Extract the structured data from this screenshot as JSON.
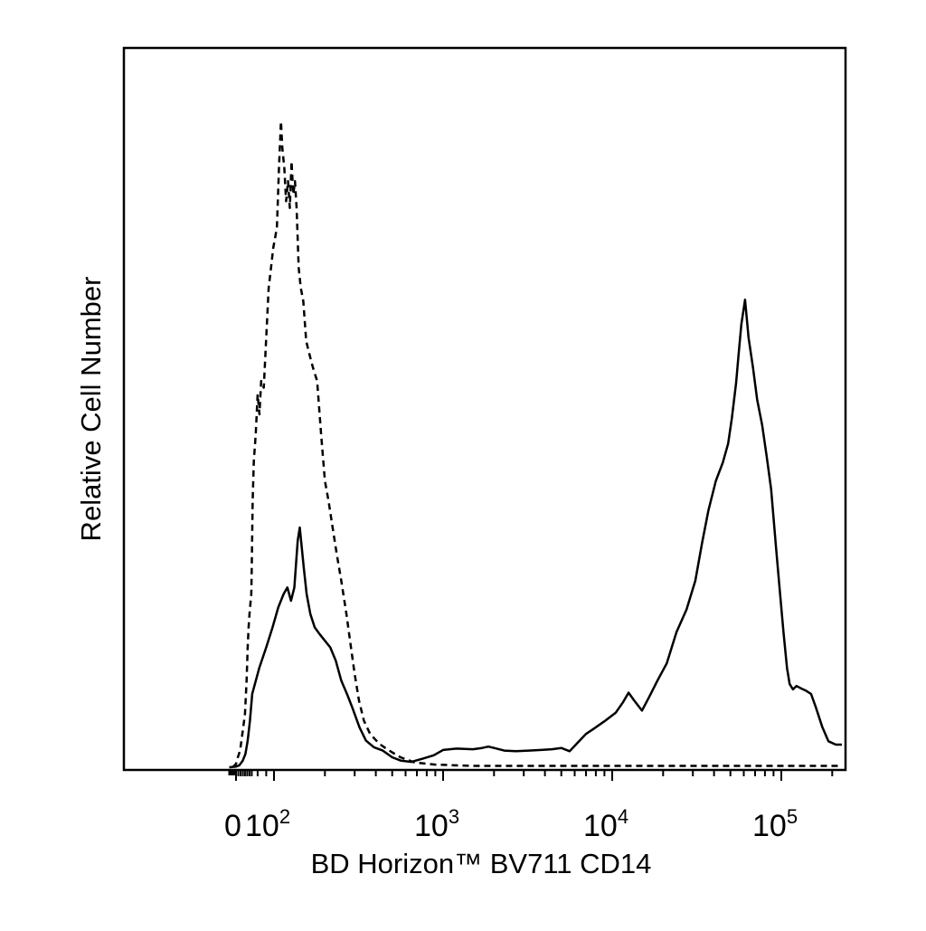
{
  "chart_data": {
    "type": "line",
    "xlabel": "BD Horizon™ BV711 CD14",
    "ylabel": "Relative Cell Number",
    "xscale": "biexponential (log-like)",
    "xlim": [
      -30,
      230000
    ],
    "ylim": [
      0,
      100
    ],
    "grid": false,
    "legend": "none",
    "x_tick_labels": [
      {
        "value": 0,
        "base": "0",
        "exp": ""
      },
      {
        "value": 100,
        "base": "10",
        "exp": "2"
      },
      {
        "value": 1000,
        "base": "10",
        "exp": "3"
      },
      {
        "value": 10000,
        "base": "10",
        "exp": "4"
      },
      {
        "value": 100000,
        "base": "10",
        "exp": "5"
      }
    ],
    "series": [
      {
        "style": "dashed",
        "color": "#000000",
        "points": [
          [
            -15,
            0
          ],
          [
            0,
            0.5
          ],
          [
            8,
            1.5
          ],
          [
            18,
            2.5
          ],
          [
            24,
            4
          ],
          [
            32,
            6
          ],
          [
            40,
            8
          ],
          [
            47,
            13
          ],
          [
            52,
            18
          ],
          [
            56,
            21
          ],
          [
            60,
            23
          ],
          [
            65,
            25
          ],
          [
            68,
            26
          ],
          [
            70,
            30
          ],
          [
            72,
            35
          ],
          [
            74,
            40
          ],
          [
            76,
            46
          ],
          [
            78,
            50
          ],
          [
            80,
            56
          ],
          [
            82,
            53
          ],
          [
            84,
            58
          ],
          [
            87,
            57
          ],
          [
            89,
            62
          ],
          [
            91,
            67
          ],
          [
            93,
            72
          ],
          [
            96,
            75
          ],
          [
            99,
            78
          ],
          [
            104,
            81
          ],
          [
            107,
            90
          ],
          [
            110,
            97
          ],
          [
            112,
            93
          ],
          [
            115,
            90
          ],
          [
            118,
            85
          ],
          [
            121,
            88
          ],
          [
            124,
            84
          ],
          [
            127,
            91
          ],
          [
            130,
            86
          ],
          [
            133,
            88
          ],
          [
            136,
            84
          ],
          [
            140,
            75
          ],
          [
            144,
            72
          ],
          [
            149,
            70
          ],
          [
            155,
            64
          ],
          [
            162,
            62
          ],
          [
            170,
            60
          ],
          [
            180,
            58
          ],
          [
            190,
            50
          ],
          [
            200,
            43
          ],
          [
            210,
            40
          ],
          [
            222,
            36
          ],
          [
            235,
            32
          ],
          [
            250,
            28
          ],
          [
            268,
            23
          ],
          [
            285,
            18
          ],
          [
            300,
            14
          ],
          [
            318,
            10
          ],
          [
            340,
            7
          ],
          [
            370,
            5
          ],
          [
            420,
            3.5
          ],
          [
            480,
            2.5
          ],
          [
            560,
            1.5
          ],
          [
            680,
            0.7
          ],
          [
            900,
            0.4
          ],
          [
            1500,
            0.2
          ],
          [
            230000,
            0.2
          ]
        ]
      },
      {
        "style": "solid",
        "color": "#000000",
        "points": [
          [
            -30,
            0
          ],
          [
            0,
            0.1
          ],
          [
            15,
            0.3
          ],
          [
            30,
            1
          ],
          [
            42,
            2
          ],
          [
            52,
            4
          ],
          [
            62,
            7
          ],
          [
            72,
            11
          ],
          [
            82,
            15
          ],
          [
            90,
            18
          ],
          [
            98,
            21
          ],
          [
            106,
            24
          ],
          [
            114,
            26
          ],
          [
            120,
            27
          ],
          [
            126,
            25
          ],
          [
            132,
            27
          ],
          [
            138,
            34
          ],
          [
            142,
            36
          ],
          [
            146,
            33
          ],
          [
            150,
            30
          ],
          [
            156,
            26
          ],
          [
            164,
            23
          ],
          [
            174,
            21
          ],
          [
            186,
            20
          ],
          [
            200,
            19
          ],
          [
            215,
            18
          ],
          [
            232,
            16
          ],
          [
            250,
            13
          ],
          [
            270,
            11
          ],
          [
            290,
            9
          ],
          [
            320,
            6
          ],
          [
            350,
            4
          ],
          [
            390,
            3
          ],
          [
            440,
            2.5
          ],
          [
            500,
            1.5
          ],
          [
            560,
            1
          ],
          [
            650,
            0.8
          ],
          [
            760,
            1.3
          ],
          [
            880,
            1.8
          ],
          [
            1000,
            2.6
          ],
          [
            1200,
            2.8
          ],
          [
            1500,
            2.7
          ],
          [
            1700,
            2.9
          ],
          [
            1850,
            3.1
          ],
          [
            2000,
            2.9
          ],
          [
            2300,
            2.5
          ],
          [
            2700,
            2.4
          ],
          [
            3200,
            2.5
          ],
          [
            3800,
            2.6
          ],
          [
            4400,
            2.7
          ],
          [
            5000,
            2.9
          ],
          [
            5600,
            2.4
          ],
          [
            6200,
            3.6
          ],
          [
            7000,
            5
          ],
          [
            7800,
            5.8
          ],
          [
            9000,
            6.9
          ],
          [
            10500,
            8.2
          ],
          [
            11600,
            9.8
          ],
          [
            12500,
            11.2
          ],
          [
            13500,
            10
          ],
          [
            15000,
            8.5
          ],
          [
            16500,
            10.5
          ],
          [
            18500,
            13
          ],
          [
            21000,
            15.6
          ],
          [
            24000,
            20.3
          ],
          [
            27500,
            23.7
          ],
          [
            31000,
            28
          ],
          [
            34000,
            33.7
          ],
          [
            37000,
            38.5
          ],
          [
            41000,
            43
          ],
          [
            45000,
            45.7
          ],
          [
            48500,
            48.6
          ],
          [
            51000,
            52.4
          ],
          [
            54000,
            57.7
          ],
          [
            56000,
            62.2
          ],
          [
            58000,
            66.5
          ],
          [
            61000,
            70.2
          ],
          [
            64000,
            64.5
          ],
          [
            68000,
            60
          ],
          [
            72000,
            55.2
          ],
          [
            77000,
            51.4
          ],
          [
            82000,
            46.6
          ],
          [
            87000,
            41.8
          ],
          [
            93000,
            33.1
          ],
          [
            98000,
            26.4
          ],
          [
            103000,
            20.3
          ],
          [
            108000,
            14.9
          ],
          [
            112000,
            12.5
          ],
          [
            117000,
            11.7
          ],
          [
            123000,
            12.2
          ],
          [
            132000,
            11.8
          ],
          [
            140000,
            11.5
          ],
          [
            150000,
            11
          ],
          [
            160000,
            9
          ],
          [
            175000,
            6
          ],
          [
            190000,
            3.9
          ],
          [
            210000,
            3.4
          ],
          [
            230000,
            3.4
          ]
        ]
      }
    ]
  }
}
